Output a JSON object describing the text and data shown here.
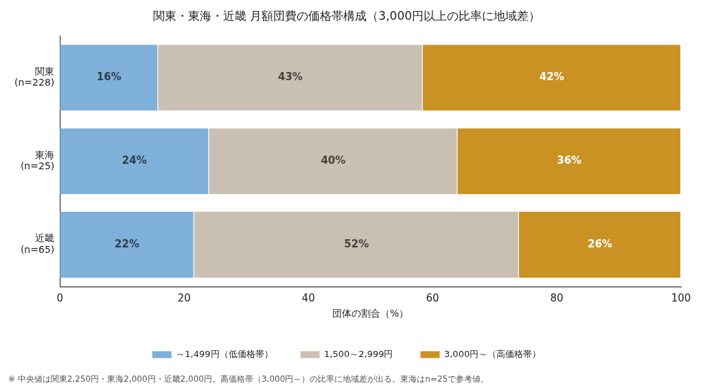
{
  "chart_data": {
    "type": "bar",
    "orientation": "horizontal",
    "stacked": true,
    "title": "関東・東海・近畿 月額団費の価格帯構成（3,000円以上の比率に地域差）",
    "xlabel": "団体の割合（%）",
    "categories": [
      "関東 (n=228)",
      "東海 (n=25)",
      "近畿 (n=65)"
    ],
    "series": [
      {
        "name": "～1,499円（低価格帯）",
        "color": "#7eb0d9",
        "values": [
          15.8,
          24.0,
          21.6
        ],
        "value_labels": [
          "16%",
          "24%",
          "22%"
        ]
      },
      {
        "name": "1,500～2,999円",
        "color": "#c9c0b3",
        "values": [
          42.6,
          40.0,
          52.3
        ],
        "value_labels": [
          "43%",
          "40%",
          "52%"
        ]
      },
      {
        "name": "3,000円～（高価格帯）",
        "color": "#c99223",
        "values": [
          41.6,
          36.0,
          26.1
        ],
        "value_labels": [
          "42%",
          "36%",
          "26%"
        ]
      }
    ],
    "xlim": [
      0,
      100
    ],
    "xticks": [
      0,
      20,
      40,
      60,
      80,
      100
    ],
    "grid": false,
    "legend": "bottom",
    "annotations": [
      "※ 中央値は関東2,250円・東海2,000円・近畿2,000円。高価格帯（3,000円～）の比率に地域差が出る。東海はn=25で参考値。"
    ]
  }
}
